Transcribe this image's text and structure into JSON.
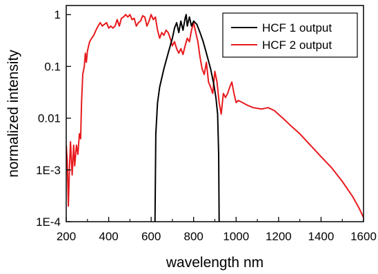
{
  "chart_data": {
    "type": "line",
    "title": "",
    "xlabel": "wavelength nm",
    "ylabel": "normalized intensity",
    "xlim": [
      200,
      1600
    ],
    "ylim": [
      0.0001,
      1.5
    ],
    "yscale": "log",
    "grid": false,
    "legend_position": "top-right",
    "x_ticks": [
      200,
      400,
      600,
      800,
      1000,
      1200,
      1400,
      1600
    ],
    "x_tick_labels": [
      "200",
      "400",
      "600",
      "800",
      "1000",
      "1200",
      "1400",
      "1600"
    ],
    "y_ticks": [
      1,
      0.1,
      0.01,
      0.001,
      0.0001
    ],
    "y_tick_labels": [
      "1",
      "0.1",
      "0.01",
      "1E-3",
      "1E-4"
    ],
    "series": [
      {
        "name": "HCF 1 output",
        "color": "#000000",
        "points": [
          [
            618,
            0.0001
          ],
          [
            622,
            0.005
          ],
          [
            630,
            0.02
          ],
          [
            640,
            0.04
          ],
          [
            660,
            0.09
          ],
          [
            680,
            0.18
          ],
          [
            700,
            0.35
          ],
          [
            710,
            0.55
          ],
          [
            720,
            0.7
          ],
          [
            730,
            0.45
          ],
          [
            740,
            0.75
          ],
          [
            750,
            0.5
          ],
          [
            760,
            0.85
          ],
          [
            765,
            1.0
          ],
          [
            770,
            0.6
          ],
          [
            780,
            0.9
          ],
          [
            790,
            0.6
          ],
          [
            800,
            0.75
          ],
          [
            815,
            0.65
          ],
          [
            830,
            0.45
          ],
          [
            845,
            0.3
          ],
          [
            860,
            0.18
          ],
          [
            880,
            0.09
          ],
          [
            895,
            0.045
          ],
          [
            905,
            0.025
          ],
          [
            913,
            0.012
          ],
          [
            918,
            0.002
          ],
          [
            920,
            0.0001
          ]
        ]
      },
      {
        "name": "HCF 2 output",
        "color": "#e8191c",
        "points": [
          [
            200,
            0.003
          ],
          [
            205,
            0.0015
          ],
          [
            210,
            0.0002
          ],
          [
            215,
            0.001
          ],
          [
            220,
            0.0035
          ],
          [
            228,
            0.0008
          ],
          [
            235,
            0.003
          ],
          [
            240,
            0.0012
          ],
          [
            248,
            0.003
          ],
          [
            255,
            0.002
          ],
          [
            262,
            0.005
          ],
          [
            268,
            0.004
          ],
          [
            272,
            0.02
          ],
          [
            278,
            0.07
          ],
          [
            285,
            0.1
          ],
          [
            290,
            0.18
          ],
          [
            295,
            0.12
          ],
          [
            300,
            0.2
          ],
          [
            310,
            0.3
          ],
          [
            320,
            0.35
          ],
          [
            330,
            0.4
          ],
          [
            340,
            0.5
          ],
          [
            350,
            0.6
          ],
          [
            360,
            0.7
          ],
          [
            370,
            0.6
          ],
          [
            380,
            0.65
          ],
          [
            390,
            0.7
          ],
          [
            400,
            0.55
          ],
          [
            410,
            0.6
          ],
          [
            420,
            0.55
          ],
          [
            430,
            0.6
          ],
          [
            440,
            0.8
          ],
          [
            450,
            0.6
          ],
          [
            460,
            0.85
          ],
          [
            470,
            0.9
          ],
          [
            480,
            1.0
          ],
          [
            490,
            0.9
          ],
          [
            500,
            1.0
          ],
          [
            510,
            0.8
          ],
          [
            520,
            0.85
          ],
          [
            530,
            0.6
          ],
          [
            540,
            0.7
          ],
          [
            550,
            0.75
          ],
          [
            560,
            0.95
          ],
          [
            570,
            0.9
          ],
          [
            580,
            0.6
          ],
          [
            590,
            0.75
          ],
          [
            600,
            1.0
          ],
          [
            610,
            0.8
          ],
          [
            620,
            0.9
          ],
          [
            630,
            0.5
          ],
          [
            640,
            0.35
          ],
          [
            650,
            0.45
          ],
          [
            660,
            0.4
          ],
          [
            670,
            0.5
          ],
          [
            680,
            0.45
          ],
          [
            690,
            0.35
          ],
          [
            700,
            0.25
          ],
          [
            710,
            0.3
          ],
          [
            720,
            0.22
          ],
          [
            730,
            0.18
          ],
          [
            740,
            0.22
          ],
          [
            750,
            0.17
          ],
          [
            760,
            0.25
          ],
          [
            770,
            0.35
          ],
          [
            780,
            0.3
          ],
          [
            790,
            0.5
          ],
          [
            800,
            0.7
          ],
          [
            810,
            0.45
          ],
          [
            820,
            0.3
          ],
          [
            830,
            0.15
          ],
          [
            840,
            0.09
          ],
          [
            850,
            0.07
          ],
          [
            860,
            0.12
          ],
          [
            870,
            0.05
          ],
          [
            880,
            0.04
          ],
          [
            890,
            0.03
          ],
          [
            900,
            0.08
          ],
          [
            910,
            0.05
          ],
          [
            920,
            0.02
          ],
          [
            930,
            0.012
          ],
          [
            940,
            0.03
          ],
          [
            950,
            0.025
          ],
          [
            960,
            0.03
          ],
          [
            970,
            0.04
          ],
          [
            980,
            0.05
          ],
          [
            990,
            0.03
          ],
          [
            1000,
            0.02
          ],
          [
            1010,
            0.022
          ],
          [
            1030,
            0.02
          ],
          [
            1050,
            0.018
          ],
          [
            1080,
            0.016
          ],
          [
            1120,
            0.015
          ],
          [
            1150,
            0.016
          ],
          [
            1180,
            0.014
          ],
          [
            1220,
            0.01
          ],
          [
            1260,
            0.007
          ],
          [
            1300,
            0.005
          ],
          [
            1350,
            0.003
          ],
          [
            1400,
            0.0018
          ],
          [
            1450,
            0.0011
          ],
          [
            1500,
            0.0006
          ],
          [
            1550,
            0.0003
          ],
          [
            1580,
            0.00018
          ],
          [
            1600,
            0.00012
          ]
        ]
      }
    ]
  }
}
